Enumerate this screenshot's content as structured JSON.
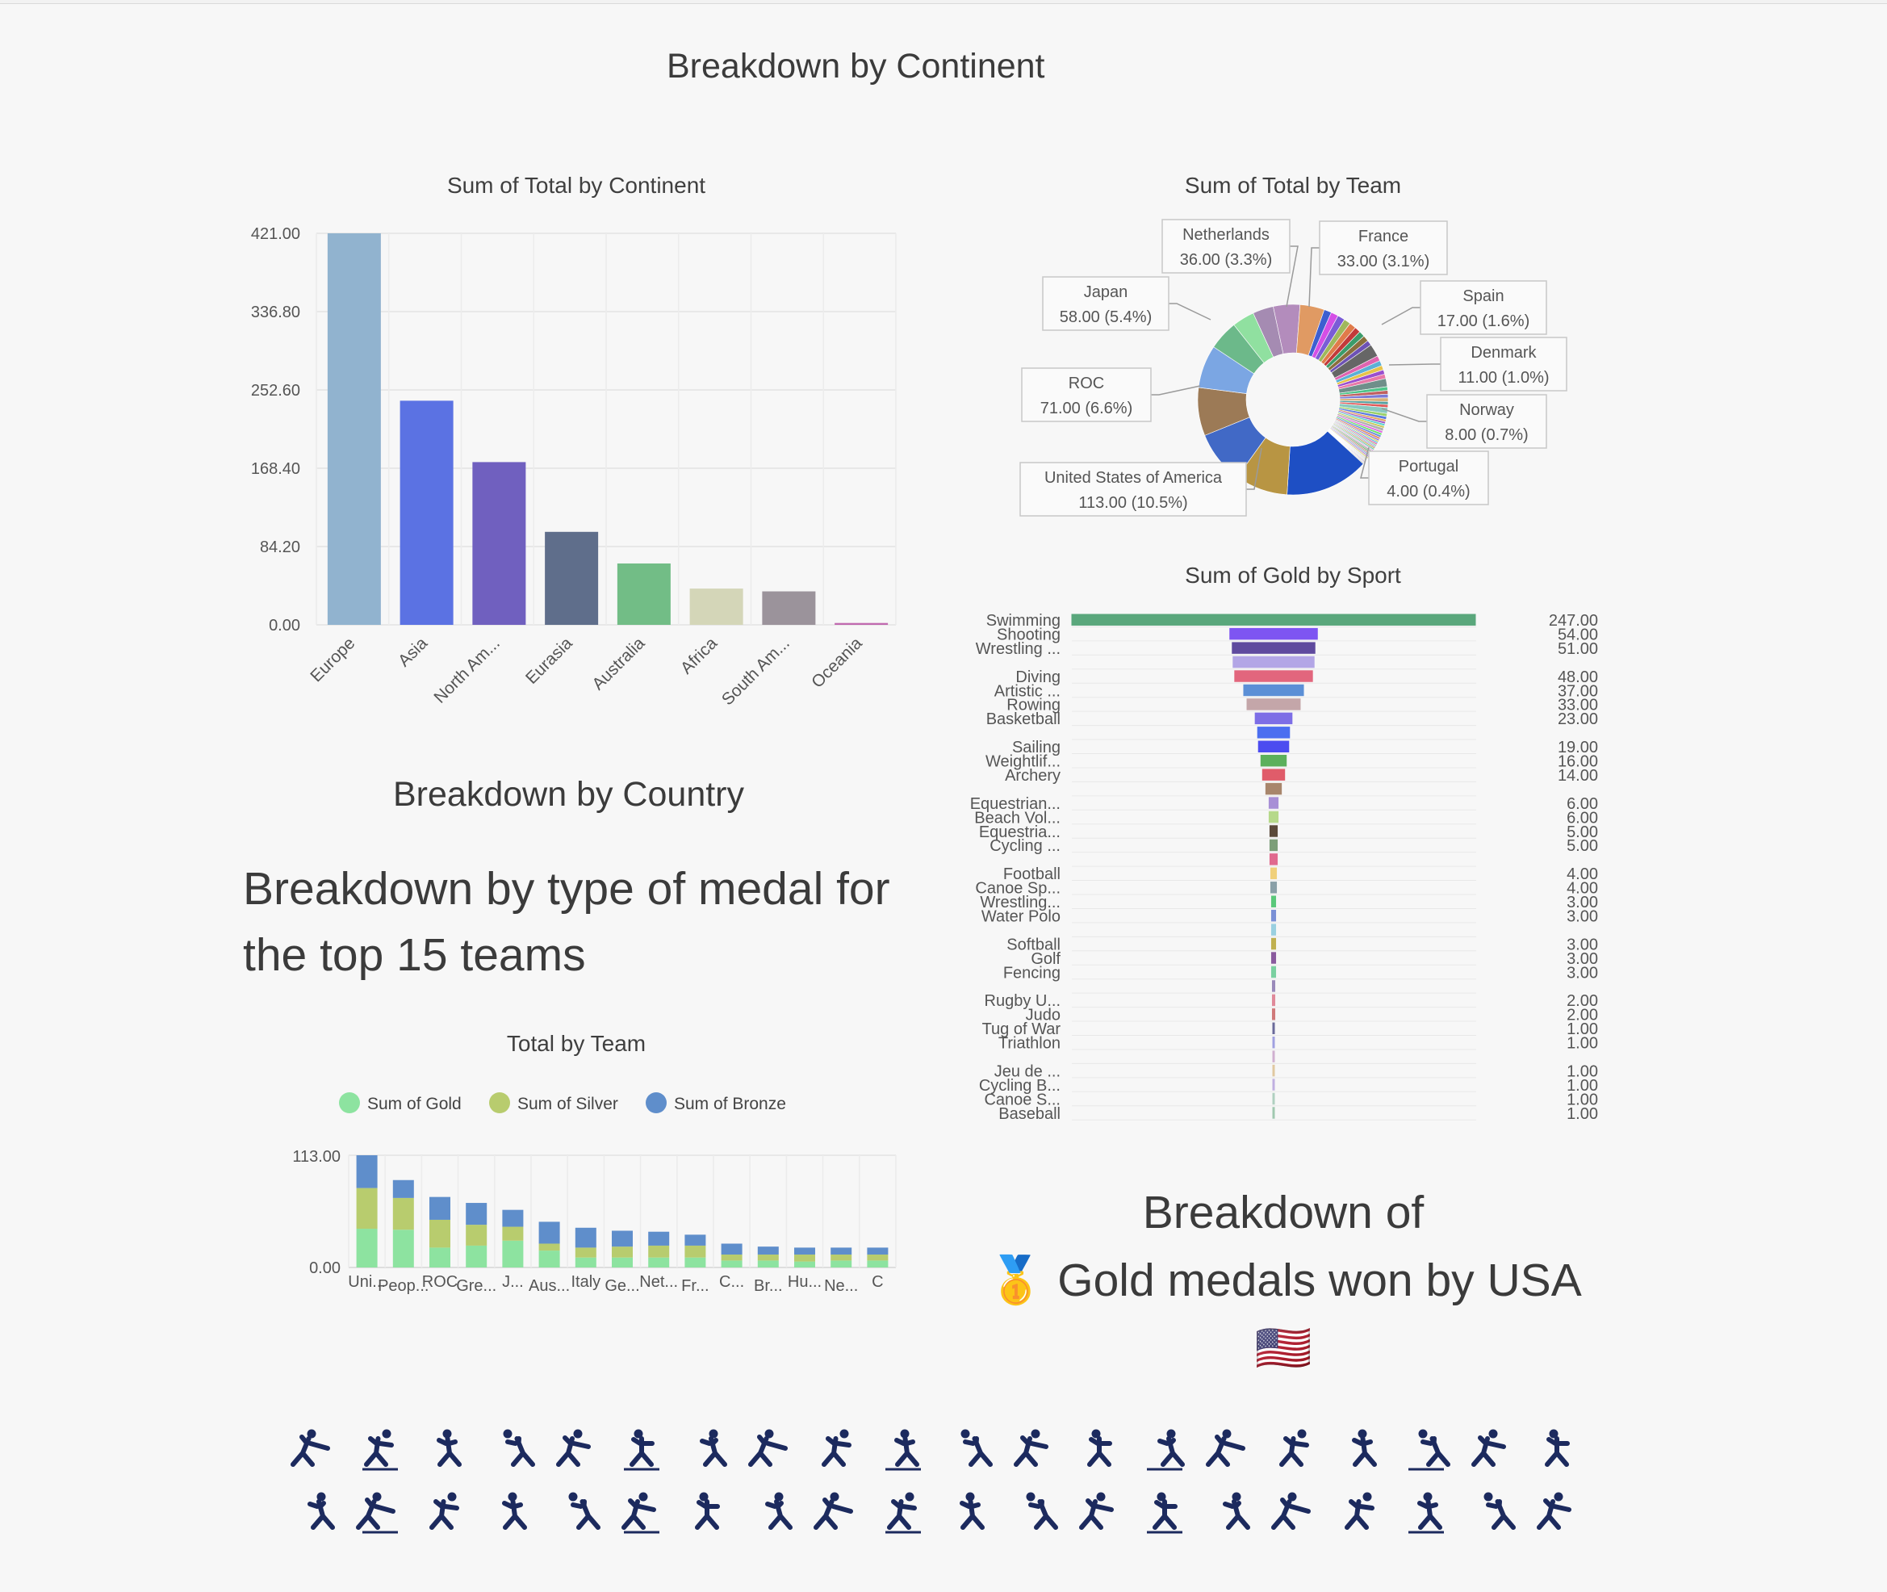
{
  "headings": {
    "continent": "Breakdown by Continent",
    "country": "Breakdown by Country",
    "medal": "Breakdown by type of medal for the top 15 teams",
    "usa_line1": "Breakdown of",
    "usa_line2": "Gold medals won by USA",
    "usa_medal_emoji": "🥇",
    "usa_flag_emoji": "🇺🇸"
  },
  "chart_data": [
    {
      "id": "continent",
      "type": "bar",
      "title": "Sum of Total by Continent",
      "categories": [
        "Europe",
        "Asia",
        "North Am...",
        "Eurasia",
        "Australia",
        "Africa",
        "South Am...",
        "Oceania"
      ],
      "values": [
        421,
        241,
        175,
        100,
        66,
        39,
        36,
        2
      ],
      "colors": [
        "#91b3cf",
        "#5b72e3",
        "#7060bf",
        "#5f6e8b",
        "#72bd86",
        "#d4d6b8",
        "#9b939b",
        "#c06ab0"
      ],
      "yticks": [
        "0.00",
        "84.20",
        "168.40",
        "252.60",
        "336.80",
        "421.00"
      ],
      "ylim": [
        0,
        421
      ],
      "grid": true
    },
    {
      "id": "team-donut",
      "type": "pie",
      "title": "Sum of Total by Team",
      "total": 1080,
      "labeled": [
        {
          "name": "United States of America",
          "value": 113,
          "label": "113.00 (10.5%)",
          "color": "#1e4fc4"
        },
        {
          "name": "ROC",
          "value": 71,
          "label": "71.00 (6.6%)",
          "color": "#4169c6"
        },
        {
          "name": "Japan",
          "value": 58,
          "label": "58.00 (5.4%)",
          "color": "#7ba6e3"
        },
        {
          "name": "Netherlands",
          "value": 36,
          "label": "36.00 (3.3%)",
          "color": "#b48ec0"
        },
        {
          "name": "France",
          "value": 33,
          "label": "33.00 (3.1%)",
          "color": "#e39564"
        },
        {
          "name": "Spain",
          "value": 17,
          "label": "17.00 (1.6%)",
          "color": "#6a6a6a"
        },
        {
          "name": "Denmark",
          "value": 11,
          "label": "11.00 (1.0%)",
          "color": "#6f8f8a"
        },
        {
          "name": "Norway",
          "value": 8,
          "label": "8.00 (0.7%)",
          "color": "#89c9c0"
        },
        {
          "name": "Portugal",
          "value": 4,
          "label": "4.00 (0.4%)",
          "color": "#b0b0b0"
        }
      ],
      "slices": [
        {
          "value": 36,
          "color": "#b38cbc"
        },
        {
          "value": 33,
          "color": "#e09a63"
        },
        {
          "value": 10,
          "color": "#3d5fd0"
        },
        {
          "value": 10,
          "color": "#d44fe6"
        },
        {
          "value": 10,
          "color": "#7a5cd6"
        },
        {
          "value": 9,
          "color": "#9fb85c"
        },
        {
          "value": 9,
          "color": "#e07b4a"
        },
        {
          "value": 8,
          "color": "#c23a3a"
        },
        {
          "value": 8,
          "color": "#3c9c6a"
        },
        {
          "value": 8,
          "color": "#8a6f3d"
        },
        {
          "value": 7,
          "color": "#6d52b4"
        },
        {
          "value": 17,
          "color": "#666666"
        },
        {
          "value": 7,
          "color": "#df63b0"
        },
        {
          "value": 7,
          "color": "#5bb0d6"
        },
        {
          "value": 6,
          "color": "#e6c34a"
        },
        {
          "value": 6,
          "color": "#9a4fcf"
        },
        {
          "value": 6,
          "color": "#e879a8"
        },
        {
          "value": 11,
          "color": "#6f8f8a"
        },
        {
          "value": 5,
          "color": "#4fc48a"
        },
        {
          "value": 5,
          "color": "#c06060"
        },
        {
          "value": 5,
          "color": "#7a7ad8"
        },
        {
          "value": 5,
          "color": "#d8b07a"
        },
        {
          "value": 4,
          "color": "#55a0a0"
        },
        {
          "value": 4,
          "color": "#e05a5a"
        },
        {
          "value": 8,
          "color": "#89c9c0"
        },
        {
          "value": 4,
          "color": "#9ad06a"
        },
        {
          "value": 4,
          "color": "#5a7ae0"
        },
        {
          "value": 3,
          "color": "#e0a05a"
        },
        {
          "value": 3,
          "color": "#a05ac8"
        },
        {
          "value": 3,
          "color": "#5ad0d0"
        },
        {
          "value": 3,
          "color": "#c8c85a"
        },
        {
          "value": 4,
          "color": "#b0b0b0"
        },
        {
          "value": 3,
          "color": "#e06ae0"
        },
        {
          "value": 3,
          "color": "#6ae06a"
        },
        {
          "value": 3,
          "color": "#6a8ae0"
        },
        {
          "value": 3,
          "color": "#e0906a"
        },
        {
          "value": 2,
          "color": "#7a5cd6"
        },
        {
          "value": 2,
          "color": "#d4d45a"
        },
        {
          "value": 2,
          "color": "#5ab0e0"
        },
        {
          "value": 2,
          "color": "#e05a9a"
        },
        {
          "value": 2,
          "color": "#8ad0a0"
        },
        {
          "value": 2,
          "color": "#a0a0e0"
        },
        {
          "value": 2,
          "color": "#c8a05a"
        },
        {
          "value": 2,
          "color": "#5ac8a0"
        },
        {
          "value": 2,
          "color": "#e0b0e0"
        },
        {
          "value": 2,
          "color": "#9a9a9a"
        },
        {
          "value": 2,
          "color": "#6ab06a"
        },
        {
          "value": 2,
          "color": "#d07a7a"
        },
        {
          "value": 2,
          "color": "#7ab0d0"
        },
        {
          "value": 2,
          "color": "#b07ad0"
        },
        {
          "value": 2,
          "color": "#d0d07a"
        },
        {
          "value": 1,
          "color": "#e08a5a"
        },
        {
          "value": 1,
          "color": "#5a8ae0"
        },
        {
          "value": 1,
          "color": "#a0e05a"
        },
        {
          "value": 1,
          "color": "#e05ac8"
        },
        {
          "value": 1,
          "color": "#5ae0c8"
        },
        {
          "value": 1,
          "color": "#c85a5a"
        },
        {
          "value": 1,
          "color": "#5a5ac8"
        },
        {
          "value": 1,
          "color": "#c8c8c8"
        },
        {
          "value": 1,
          "color": "#8a8a5a"
        },
        {
          "value": 113,
          "color": "#1e4fc4"
        },
        {
          "value": 71,
          "color": "#b89543"
        },
        {
          "value": 71,
          "color": "#4169c6"
        },
        {
          "value": 65,
          "color": "#9c7a56"
        },
        {
          "value": 58,
          "color": "#7ba6e3"
        },
        {
          "value": 40,
          "color": "#6cb98a"
        },
        {
          "value": 30,
          "color": "#90e0a0"
        },
        {
          "value": 28,
          "color": "#a58bb2"
        }
      ]
    },
    {
      "id": "sport-gold",
      "type": "bar",
      "orientation": "funnel",
      "title": "Sum of Gold by Sport",
      "categories": [
        "Swimming",
        "Shooting",
        "Wrestling ...",
        "",
        "Diving",
        "Artistic ...",
        "Rowing",
        "Basketball",
        "",
        "Sailing",
        "Weightlif...",
        "Archery",
        "",
        "Equestrian...",
        "Beach Vol...",
        "Equestria...",
        "Cycling ...",
        "",
        "Football",
        "Canoe Sp...",
        "Wrestling...",
        "Water Polo",
        "",
        "Softball",
        "Golf",
        "Fencing",
        "",
        "Rugby U...",
        "Judo",
        "Tug of War",
        "Triathlon",
        "",
        "Jeu de ...",
        "Cycling B...",
        "Canoe S...",
        "Baseball"
      ],
      "values": [
        247,
        54,
        51,
        50,
        48,
        37,
        33,
        23,
        20,
        19,
        16,
        14,
        10,
        6,
        6,
        5,
        5,
        5,
        4,
        4,
        3,
        3,
        3,
        3,
        3,
        3,
        2,
        2,
        2,
        1,
        1,
        1,
        1,
        1,
        1,
        1
      ],
      "value_labels": [
        "247.00",
        "54.00",
        "51.00",
        "",
        "48.00",
        "37.00",
        "33.00",
        "23.00",
        "",
        "19.00",
        "16.00",
        "14.00",
        "",
        "6.00",
        "6.00",
        "5.00",
        "5.00",
        "",
        "4.00",
        "4.00",
        "3.00",
        "3.00",
        "",
        "3.00",
        "3.00",
        "3.00",
        "",
        "2.00",
        "2.00",
        "1.00",
        "1.00",
        "",
        "1.00",
        "1.00",
        "1.00",
        "1.00"
      ],
      "colors": [
        "#5aa77c",
        "#7e55f2",
        "#5f4a9e",
        "#b3a6e6",
        "#e2667d",
        "#5b8fd6",
        "#c4a6a9",
        "#7d6ee6",
        "#4b6ef0",
        "#4c4cf0",
        "#5cb05c",
        "#e05c6a",
        "#a8866c",
        "#a88fd6",
        "#b6d98a",
        "#5b4a3a",
        "#7c9e78",
        "#e06a8e",
        "#f0d07a",
        "#8aa0a8",
        "#5ac87a",
        "#7a90d6",
        "#9ad0e0",
        "#c0b050",
        "#8a5a9e",
        "#7ad0a0",
        "#9a8aba",
        "#e08a9a",
        "#d07a7a",
        "#6a6a9a",
        "#a0a0e0",
        "#d0b0d0",
        "#e0c8a0",
        "#c0b0e0",
        "#b0d0c0",
        "#a0c8b0"
      ]
    },
    {
      "id": "top15",
      "type": "bar",
      "stacked": true,
      "title": "Total by Team",
      "categories": [
        "Uni...",
        "Peop...",
        "ROC",
        "Gre...",
        "J...",
        "Aus...",
        "Italy",
        "Ge...",
        "Net...",
        "Fr...",
        "C...",
        "Br...",
        "Hu...",
        "Ne...",
        "C"
      ],
      "series": [
        {
          "name": "Sum of Gold",
          "color": "#8de3a0",
          "values": [
            39,
            38,
            20,
            22,
            27,
            17,
            10,
            10,
            10,
            10,
            7,
            7,
            6,
            7,
            7
          ]
        },
        {
          "name": "Sum of Silver",
          "color": "#b8cc6e",
          "values": [
            41,
            32,
            28,
            21,
            14,
            7,
            10,
            11,
            12,
            12,
            6,
            6,
            7,
            6,
            6
          ]
        },
        {
          "name": "Sum of Bronze",
          "color": "#5f8ecb",
          "values": [
            33,
            18,
            23,
            22,
            17,
            22,
            20,
            16,
            14,
            11,
            11,
            8,
            7,
            7,
            7
          ]
        }
      ],
      "yticks": [
        "0.00",
        "113.00"
      ],
      "ylim": [
        0,
        113
      ]
    }
  ],
  "pictograms": {
    "count": 40,
    "color": "#1c2a5e",
    "names": [
      "3x3 Basketball",
      "Archery",
      "Artistic Gymnastics",
      "Artistic Swimming",
      "Athletics",
      "Badminton",
      "Baseball",
      "Basketball",
      "Basketball 3x3",
      "Beach Volleyball",
      "Boxing",
      "Canoe Slalom",
      "Canoe Sprint",
      "Cycling BMX Freestyle",
      "Cycling BMX Racing",
      "Cycling Mountain Bike",
      "Cycling Road",
      "Cycling Track",
      "Diving",
      "Equestrian",
      "Equestrian Jumping",
      "Fencing",
      "Football",
      "Golf",
      "Handball",
      "Hockey",
      "Judo",
      "Karate",
      "Marathon Swimming",
      "Modern Pentathlon",
      "Rhythmic Gymnastics",
      "Rowing",
      "Rugby Sevens",
      "Sailing",
      "Shooting",
      "Skateboarding",
      "Sport Climbing",
      "Surfing",
      "Swimming",
      "Table Tennis"
    ]
  }
}
